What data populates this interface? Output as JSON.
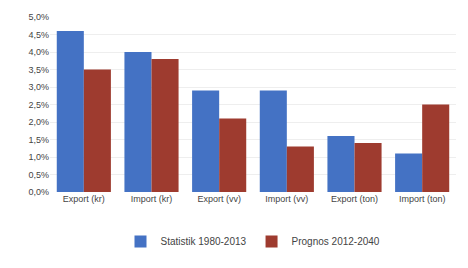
{
  "chart_data": {
    "type": "bar",
    "categories": [
      "Export (kr)",
      "Import (kr)",
      "Export (vv)",
      "Import (vv)",
      "Export (ton)",
      "Import (ton)"
    ],
    "series": [
      {
        "name": "Statistik 1980-2013",
        "color": "#4472C4",
        "values": [
          0.046,
          0.04,
          0.029,
          0.029,
          0.016,
          0.011
        ]
      },
      {
        "name": "Prognos 2012-2040",
        "color": "#9E3B2F",
        "values": [
          0.035,
          0.038,
          0.021,
          0.013,
          0.014,
          0.025
        ]
      }
    ],
    "ylim": [
      0,
      0.05
    ],
    "yticks": [
      {
        "value": 0.0,
        "label": "0,0%"
      },
      {
        "value": 0.005,
        "label": "0,5%"
      },
      {
        "value": 0.01,
        "label": "1,0%"
      },
      {
        "value": 0.015,
        "label": "1,5%"
      },
      {
        "value": 0.02,
        "label": "2,0%"
      },
      {
        "value": 0.025,
        "label": "2,5%"
      },
      {
        "value": 0.03,
        "label": "3,0%"
      },
      {
        "value": 0.035,
        "label": "3,5%"
      },
      {
        "value": 0.04,
        "label": "4,0%"
      },
      {
        "value": 0.045,
        "label": "4,5%"
      },
      {
        "value": 0.05,
        "label": "5,0%"
      }
    ],
    "grid": true,
    "legend": "bottom"
  }
}
